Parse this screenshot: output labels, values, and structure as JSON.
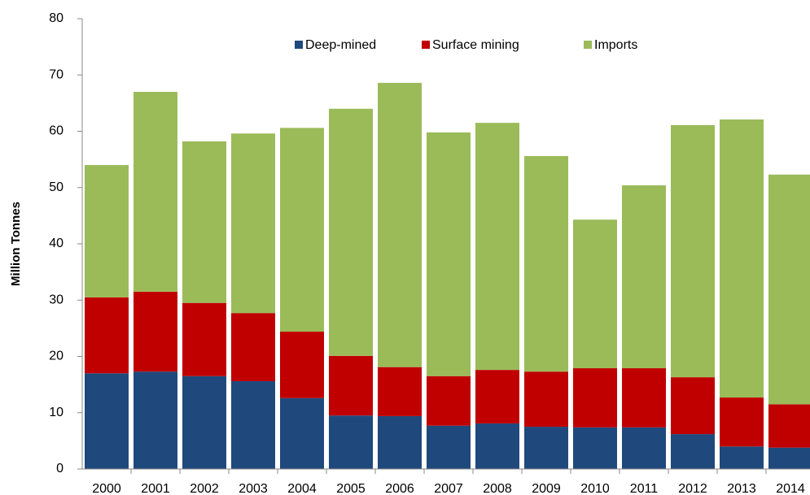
{
  "chart_data": {
    "type": "stacked_bar",
    "y_label": "Million Tonnes",
    "categories": [
      "2000",
      "2001",
      "2002",
      "2003",
      "2004",
      "2005",
      "2006",
      "2007",
      "2008",
      "2009",
      "2010",
      "2011",
      "2012",
      "2013",
      "2014"
    ],
    "series": [
      {
        "name": "Deep-mined",
        "color": "#1f497d",
        "values": [
          17.0,
          17.3,
          16.5,
          15.6,
          12.6,
          9.5,
          9.4,
          7.7,
          8.1,
          7.5,
          7.4,
          7.4,
          6.2,
          4.0,
          3.8
        ]
      },
      {
        "name": "Surface mining",
        "color": "#c00000",
        "values": [
          13.5,
          14.2,
          13.0,
          12.1,
          11.8,
          10.6,
          8.7,
          8.8,
          9.5,
          9.8,
          10.5,
          10.5,
          10.1,
          8.7,
          7.7
        ]
      },
      {
        "name": "Imports",
        "color": "#9bbb59",
        "values": [
          23.5,
          35.5,
          28.7,
          31.9,
          36.2,
          43.9,
          50.5,
          43.3,
          43.9,
          38.3,
          26.4,
          32.5,
          44.8,
          49.4,
          40.8
        ]
      }
    ],
    "ylim": [
      0,
      80
    ],
    "yticks": [
      0,
      10,
      20,
      30,
      40,
      50,
      60,
      70,
      80
    ],
    "grid": false
  }
}
